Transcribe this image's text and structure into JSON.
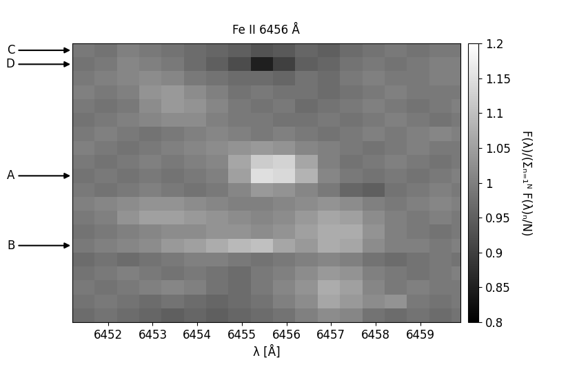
{
  "chart_data": {
    "type": "heatmap",
    "title": "Fe II 6456 Å",
    "x_label": "λ [Å]",
    "colorbar_label": "F(λ)/(Σₙ₌₁ᴺ F(λ)ₙ/N)",
    "color": "gray",
    "tick_labels": "x",
    "x": [
      6451.45,
      6451.95,
      6452.45,
      6452.95,
      6453.45,
      6453.95,
      6454.45,
      6454.95,
      6455.45,
      6455.95,
      6456.45,
      6456.95,
      6457.45,
      6457.95,
      6458.45,
      6458.95,
      6459.45,
      6459.95
    ],
    "xlim": [
      6451.2,
      6459.9
    ],
    "xticks": [
      6452,
      6453,
      6454,
      6455,
      6456,
      6457,
      6458,
      6459
    ],
    "cells": [
      [
        0.99,
        0.98,
        1.0,
        0.99,
        0.98,
        0.97,
        0.96,
        0.95,
        0.93,
        0.94,
        0.96,
        0.95,
        0.97,
        0.98,
        0.99,
        0.98,
        0.99,
        0.99
      ],
      [
        0.98,
        0.99,
        1.01,
        1.0,
        0.99,
        0.97,
        0.95,
        0.92,
        0.85,
        0.9,
        0.95,
        0.96,
        0.98,
        0.99,
        0.98,
        0.99,
        1.0,
        1.0
      ],
      [
        0.99,
        1.0,
        1.01,
        1.02,
        1.01,
        0.99,
        0.98,
        0.97,
        0.97,
        0.96,
        0.98,
        0.97,
        0.99,
        1.0,
        0.99,
        0.99,
        1.0,
        1.0
      ],
      [
        1.0,
        0.99,
        1.0,
        1.03,
        1.04,
        1.02,
        1.0,
        0.98,
        0.99,
        0.98,
        0.98,
        0.97,
        0.98,
        0.99,
        1.0,
        0.99,
        0.99,
        0.99
      ],
      [
        0.99,
        0.98,
        0.99,
        1.02,
        1.04,
        1.03,
        1.01,
        0.99,
        0.98,
        0.99,
        0.97,
        0.98,
        0.99,
        1.0,
        0.99,
        0.98,
        0.99,
        1.0
      ],
      [
        0.98,
        0.99,
        1.0,
        1.01,
        1.02,
        1.02,
        1.0,
        0.99,
        0.99,
        0.98,
        0.98,
        0.99,
        0.98,
        0.99,
        1.0,
        0.99,
        0.98,
        0.99
      ],
      [
        0.99,
        1.0,
        0.99,
        0.98,
        0.99,
        1.0,
        1.01,
        1.0,
        0.99,
        1.0,
        0.99,
        0.98,
        0.99,
        1.0,
        0.99,
        1.0,
        1.01,
        1.0
      ],
      [
        1.0,
        0.99,
        0.98,
        0.99,
        1.0,
        1.01,
        1.02,
        1.03,
        1.04,
        1.03,
        1.01,
        1.0,
        0.99,
        0.98,
        0.99,
        1.0,
        0.99,
        0.99
      ],
      [
        0.99,
        0.98,
        0.99,
        1.0,
        0.99,
        1.0,
        1.01,
        1.06,
        1.12,
        1.13,
        1.06,
        1.0,
        0.98,
        0.99,
        1.0,
        0.99,
        0.98,
        0.99
      ],
      [
        0.98,
        0.99,
        0.98,
        0.99,
        0.98,
        0.99,
        1.0,
        1.05,
        1.15,
        1.14,
        1.08,
        1.01,
        0.99,
        0.98,
        0.99,
        0.98,
        0.99,
        1.0
      ],
      [
        0.99,
        0.98,
        0.99,
        1.0,
        0.99,
        0.98,
        0.99,
        1.01,
        1.04,
        1.03,
        1.01,
        0.99,
        0.96,
        0.95,
        0.98,
        0.99,
        1.0,
        0.99
      ],
      [
        1.0,
        1.01,
        1.02,
        1.03,
        1.03,
        1.02,
        1.01,
        1.0,
        1.0,
        1.01,
        1.02,
        1.03,
        1.02,
        1.0,
        0.99,
        1.0,
        1.01,
        1.0
      ],
      [
        0.99,
        1.0,
        1.03,
        1.05,
        1.05,
        1.04,
        1.03,
        1.02,
        1.01,
        1.02,
        1.04,
        1.06,
        1.05,
        1.02,
        1.0,
        0.99,
        1.0,
        0.99
      ],
      [
        0.98,
        0.99,
        1.0,
        1.01,
        1.02,
        1.02,
        1.03,
        1.03,
        1.02,
        1.03,
        1.05,
        1.07,
        1.07,
        1.03,
        1.0,
        0.99,
        0.98,
        0.99
      ],
      [
        0.99,
        1.0,
        1.01,
        1.02,
        1.04,
        1.05,
        1.07,
        1.09,
        1.1,
        1.06,
        1.04,
        1.07,
        1.06,
        1.02,
        1.0,
        1.0,
        0.99,
        1.0
      ],
      [
        0.97,
        0.98,
        0.97,
        0.98,
        0.99,
        1.0,
        1.0,
        0.99,
        0.98,
        0.99,
        1.0,
        1.01,
        1.0,
        0.98,
        0.97,
        0.98,
        0.99,
        0.98
      ],
      [
        0.98,
        0.99,
        1.0,
        0.99,
        0.98,
        0.99,
        0.98,
        0.97,
        0.99,
        1.0,
        1.02,
        1.04,
        1.03,
        1.0,
        0.99,
        0.98,
        0.99,
        1.0
      ],
      [
        0.99,
        0.98,
        0.99,
        1.0,
        1.01,
        1.0,
        0.98,
        0.97,
        0.99,
        1.01,
        1.03,
        1.07,
        1.05,
        1.01,
        0.99,
        1.0,
        0.99,
        0.99
      ],
      [
        0.98,
        0.99,
        0.98,
        0.97,
        0.98,
        0.97,
        0.96,
        0.97,
        0.98,
        1.0,
        1.02,
        1.06,
        1.04,
        1.02,
        1.03,
        0.99,
        0.98,
        0.99
      ],
      [
        0.97,
        0.98,
        0.97,
        0.96,
        0.95,
        0.96,
        0.95,
        0.96,
        0.97,
        0.98,
        1.0,
        1.02,
        1.01,
        0.98,
        0.97,
        0.98,
        0.97,
        0.98
      ]
    ],
    "colorbar_lim": [
      0.8,
      1.2
    ],
    "colorbar_ticks": [
      0.8,
      0.85,
      0.9,
      0.95,
      1,
      1.05,
      1.1,
      1.15,
      1.2
    ],
    "annotations": [
      {
        "text": "C",
        "row": 0
      },
      {
        "text": "D",
        "row": 1
      },
      {
        "text": "A",
        "row": 9
      },
      {
        "text": "B",
        "row": 14
      }
    ]
  }
}
